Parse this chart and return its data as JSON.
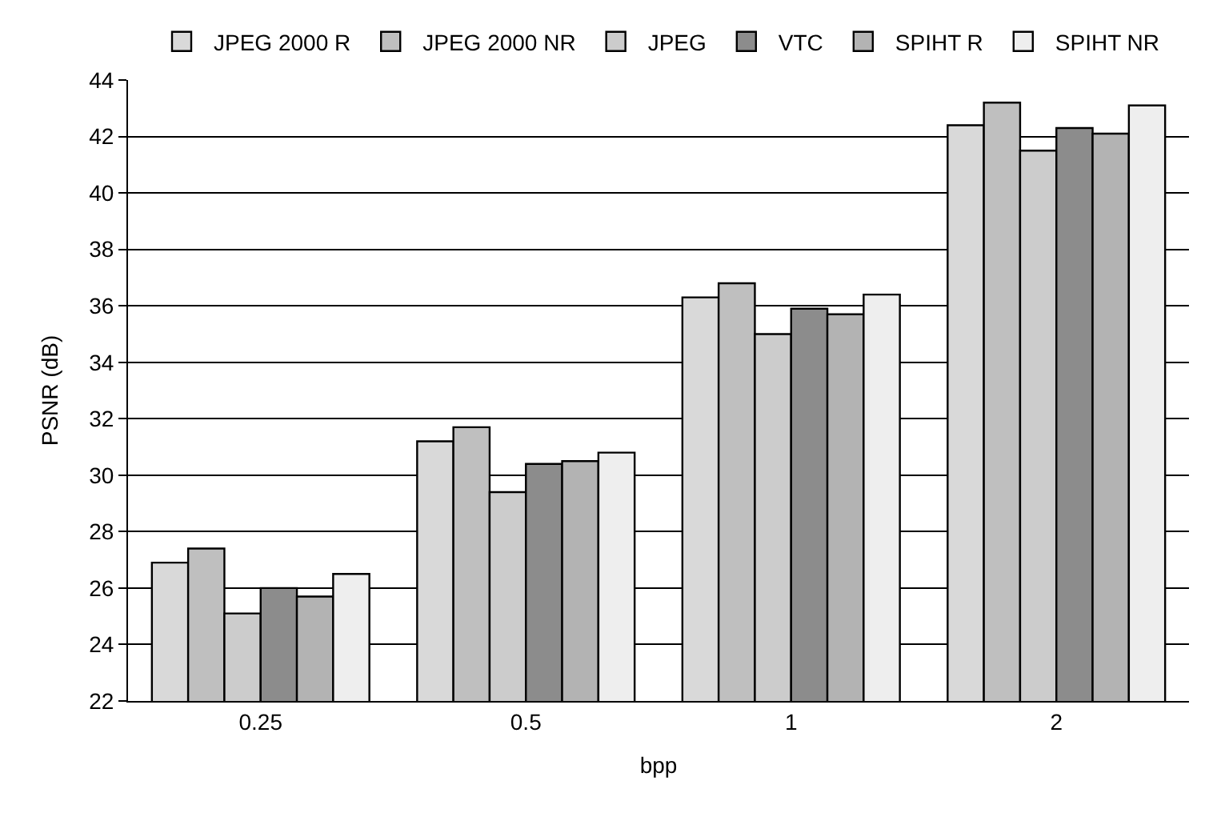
{
  "chart_data": {
    "type": "bar",
    "xlabel": "bpp",
    "ylabel": "PSNR (dB)",
    "categories": [
      "0.25",
      "0.5",
      "1",
      "2"
    ],
    "series": [
      {
        "name": "JPEG 2000 R",
        "color": "#d9d9d9",
        "values": [
          26.9,
          31.2,
          36.3,
          42.4
        ]
      },
      {
        "name": "JPEG 2000 NR",
        "color": "#bfbfbf",
        "values": [
          27.4,
          31.7,
          36.8,
          43.2
        ]
      },
      {
        "name": "JPEG",
        "color": "#cccccc",
        "values": [
          25.1,
          29.4,
          35.0,
          41.5
        ]
      },
      {
        "name": "VTC",
        "color": "#8c8c8c",
        "values": [
          26.0,
          30.4,
          35.9,
          42.3
        ]
      },
      {
        "name": "SPIHT R",
        "color": "#b3b3b3",
        "values": [
          25.7,
          30.5,
          35.7,
          42.1
        ]
      },
      {
        "name": "SPIHT NR",
        "color": "#eeeeee",
        "values": [
          26.5,
          30.8,
          36.4,
          43.1
        ]
      }
    ],
    "ylim": [
      22,
      44
    ],
    "yticks": [
      22,
      24,
      26,
      28,
      30,
      32,
      34,
      36,
      38,
      40,
      42,
      44
    ],
    "grid": "y",
    "legend": "top"
  }
}
